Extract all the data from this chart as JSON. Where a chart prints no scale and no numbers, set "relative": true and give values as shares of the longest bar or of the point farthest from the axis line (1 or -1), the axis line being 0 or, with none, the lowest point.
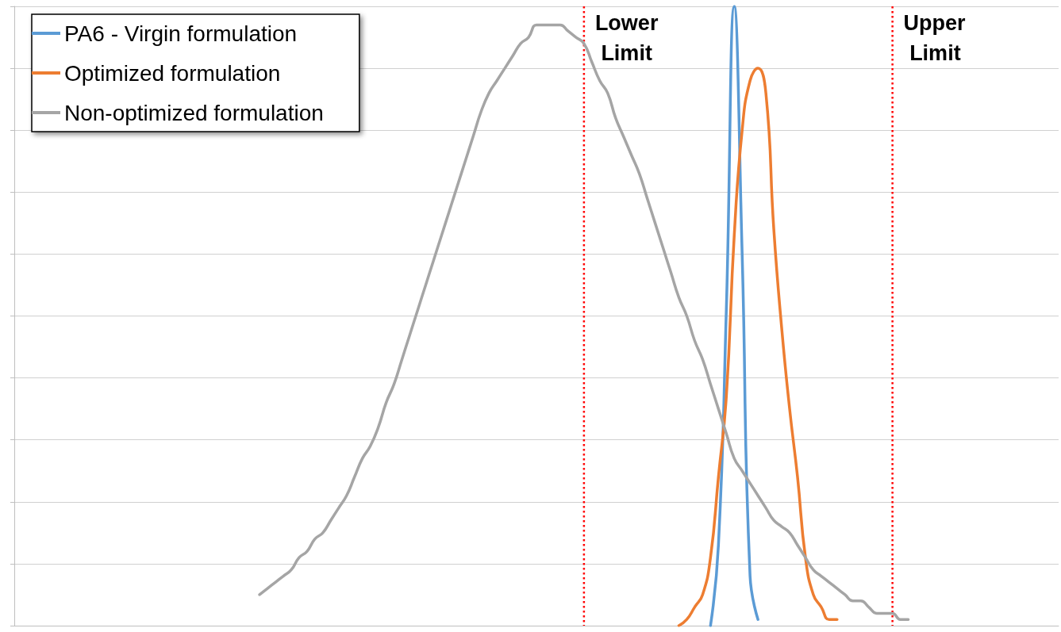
{
  "chart_data": {
    "type": "line",
    "relative": true,
    "grid": "y",
    "legend": "top left",
    "marker": "none",
    "line_style": "solid",
    "categories": [
      null,
      null,
      null,
      null,
      null,
      null,
      null,
      null,
      null,
      null,
      null,
      null,
      null,
      null,
      null,
      null,
      null,
      null,
      null,
      null,
      null,
      null,
      null,
      null,
      null,
      null,
      null,
      null,
      null,
      null,
      null,
      null,
      null,
      null,
      null,
      null,
      null,
      null,
      null,
      null,
      null,
      null,
      null,
      null,
      null,
      null,
      null,
      null,
      null,
      null,
      null,
      null,
      null,
      null,
      null,
      null,
      null,
      null,
      null,
      null,
      null,
      null,
      null,
      null,
      null,
      null,
      null,
      null,
      null,
      null,
      null,
      null,
      null,
      null,
      null,
      null,
      null,
      null,
      null,
      null,
      null,
      null,
      null,
      null,
      null,
      null,
      null,
      null,
      null,
      null,
      null,
      null,
      null,
      null,
      null,
      null,
      null,
      null,
      null,
      null,
      null,
      null,
      null,
      null,
      null,
      null,
      null,
      null,
      null,
      null,
      null,
      null,
      null,
      null,
      null,
      null,
      null,
      null,
      null,
      null,
      null,
      null,
      null,
      null,
      null,
      null,
      null,
      null,
      null,
      null,
      null,
      null,
      null
    ],
    "series": [
      {
        "name": "PA6 - Virgin formulation",
        "color": "#5b9bd5",
        "values": [
          null,
          null,
          null,
          null,
          null,
          null,
          null,
          null,
          null,
          null,
          null,
          null,
          null,
          null,
          null,
          null,
          null,
          null,
          null,
          null,
          null,
          null,
          null,
          null,
          null,
          null,
          null,
          null,
          null,
          null,
          null,
          null,
          null,
          null,
          null,
          null,
          null,
          null,
          null,
          null,
          null,
          null,
          null,
          null,
          null,
          null,
          null,
          null,
          null,
          null,
          null,
          null,
          null,
          null,
          null,
          null,
          null,
          null,
          null,
          null,
          null,
          null,
          null,
          null,
          null,
          null,
          null,
          null,
          null,
          null,
          null,
          null,
          null,
          null,
          null,
          null,
          null,
          null,
          null,
          null,
          null,
          null,
          null,
          null,
          null,
          null,
          null,
          null,
          0.0,
          0.13,
          0.51,
          1.0,
          0.6,
          0.08,
          0.01,
          null,
          null,
          null,
          null,
          null,
          null,
          null,
          null,
          null,
          null,
          null,
          null,
          null,
          null,
          null,
          null,
          null,
          null,
          null,
          null,
          null,
          null,
          null,
          null,
          null,
          null,
          null,
          null,
          null,
          null,
          null,
          null,
          null,
          null,
          null,
          null,
          null,
          null
        ]
      },
      {
        "name": "Optimized formulation",
        "color": "#ed7d31",
        "values": [
          null,
          null,
          null,
          null,
          null,
          null,
          null,
          null,
          null,
          null,
          null,
          null,
          null,
          null,
          null,
          null,
          null,
          null,
          null,
          null,
          null,
          null,
          null,
          null,
          null,
          null,
          null,
          null,
          null,
          null,
          null,
          null,
          null,
          null,
          null,
          null,
          null,
          null,
          null,
          null,
          null,
          null,
          null,
          null,
          null,
          null,
          null,
          null,
          null,
          null,
          null,
          null,
          null,
          null,
          null,
          null,
          null,
          null,
          null,
          null,
          null,
          null,
          null,
          null,
          null,
          null,
          null,
          null,
          null,
          null,
          null,
          null,
          null,
          null,
          null,
          null,
          null,
          null,
          null,
          null,
          null,
          null,
          null,
          null,
          0.0,
          0.01,
          0.03,
          0.05,
          0.11,
          0.24,
          0.37,
          0.63,
          0.8,
          0.88,
          0.9,
          0.86,
          0.64,
          0.48,
          0.35,
          0.24,
          0.11,
          0.05,
          0.03,
          0.01,
          0.01,
          null,
          null,
          null,
          null,
          null,
          null,
          null,
          null,
          null,
          null,
          null,
          null,
          null,
          null,
          null,
          null,
          null,
          null,
          null,
          null,
          null,
          null,
          null,
          null,
          null,
          null,
          null,
          null
        ]
      },
      {
        "name": "Non-optimized formulation",
        "color": "#a5a5a5",
        "values": [
          null,
          null,
          null,
          null,
          null,
          null,
          null,
          null,
          null,
          null,
          null,
          null,
          null,
          null,
          null,
          null,
          null,
          null,
          null,
          null,
          null,
          null,
          null,
          null,
          null,
          null,
          null,
          null,
          null,
          null,
          null,
          0.05,
          0.06,
          0.07,
          0.08,
          0.09,
          0.11,
          0.12,
          0.14,
          0.15,
          0.17,
          0.19,
          0.21,
          0.24,
          0.27,
          0.29,
          0.32,
          0.36,
          0.39,
          0.43,
          0.47,
          0.51,
          0.55,
          0.59,
          0.63,
          0.67,
          0.71,
          0.75,
          0.79,
          0.83,
          0.86,
          0.88,
          0.9,
          0.92,
          0.94,
          0.95,
          0.97,
          0.97,
          0.97,
          0.97,
          0.96,
          0.95,
          0.94,
          0.91,
          0.88,
          0.86,
          0.82,
          0.79,
          0.76,
          0.73,
          0.69,
          0.65,
          0.61,
          0.57,
          0.53,
          0.5,
          0.46,
          0.43,
          0.39,
          0.35,
          0.31,
          0.27,
          0.25,
          0.23,
          0.21,
          0.19,
          0.17,
          0.16,
          0.15,
          0.13,
          0.11,
          0.09,
          0.08,
          0.07,
          0.06,
          0.05,
          0.04,
          0.04,
          0.03,
          0.02,
          0.02,
          0.02,
          0.01,
          0.01,
          null,
          null,
          null,
          null,
          null,
          null,
          null,
          null,
          null,
          null,
          null,
          null,
          null,
          null,
          null,
          null,
          null,
          null,
          null
        ]
      }
    ],
    "annotations": [
      "Lower Limit",
      "Upper Limit"
    ]
  }
}
